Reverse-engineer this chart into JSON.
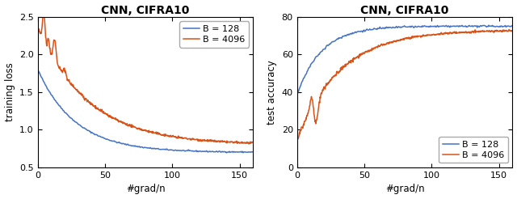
{
  "title": "CNN, CIFRA10",
  "left": {
    "ylabel": "training loss",
    "xlabel": "#grad/n",
    "xlim": [
      0,
      160
    ],
    "ylim": [
      0.5,
      2.5
    ],
    "yticks": [
      0.5,
      1.0,
      1.5,
      2.0,
      2.5
    ],
    "xticks": [
      0,
      50,
      100,
      150
    ]
  },
  "right": {
    "ylabel": "test accuracy",
    "xlabel": "#grad/n",
    "xlim": [
      0,
      160
    ],
    "ylim": [
      0,
      80
    ],
    "yticks": [
      0,
      20,
      40,
      60,
      80
    ],
    "xticks": [
      0,
      50,
      100,
      150
    ]
  },
  "legend": [
    "B = 128",
    "B = 4096"
  ],
  "color_128": "#4472C4",
  "color_4096": "#D95319",
  "linewidth": 1.1,
  "title_fontsize": 10,
  "label_fontsize": 8.5,
  "tick_fontsize": 8,
  "legend_fontsize": 8
}
